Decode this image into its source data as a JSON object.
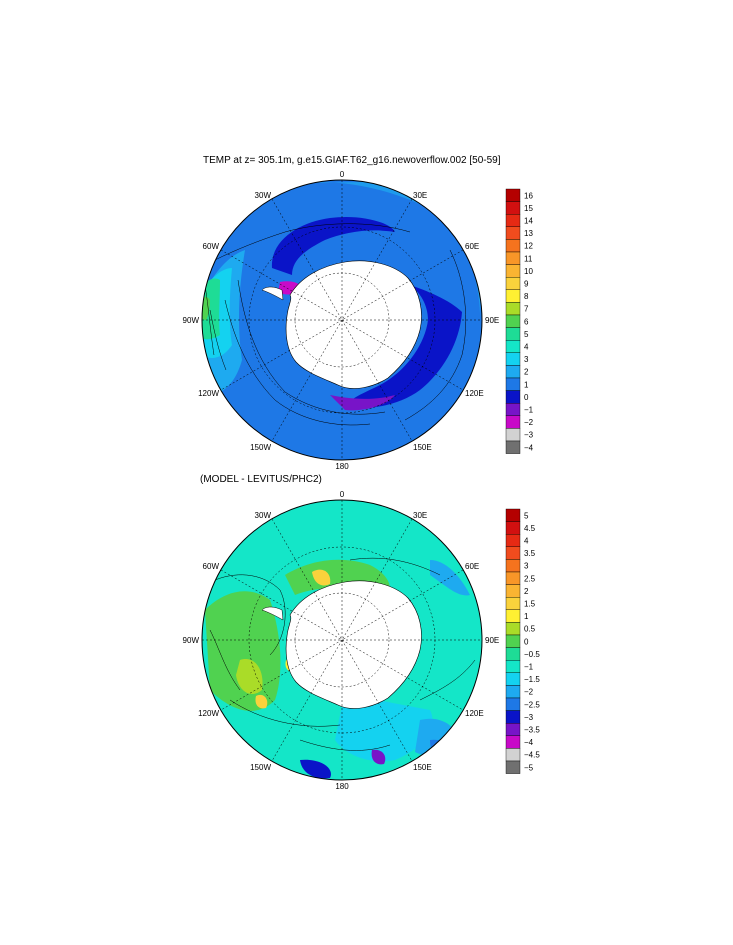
{
  "map1": {
    "title": "TEMP at z= 305.1m, g.e15.GIAF.T62_g16.newoverflow.002 [50-59]",
    "lon_labels": [
      "0",
      "30E",
      "60E",
      "90E",
      "120E",
      "150E",
      "180",
      "150W",
      "120W",
      "90W",
      "60W",
      "30W"
    ],
    "colorbar": {
      "labels": [
        "16",
        "15",
        "14",
        "13",
        "12",
        "11",
        "10",
        "9",
        "8",
        "7",
        "6",
        "5",
        "4",
        "3",
        "2",
        "1",
        "0",
        "−1",
        "−2",
        "−3",
        "−4"
      ],
      "colors": [
        "#b40000",
        "#d21010",
        "#e62a14",
        "#f04c1e",
        "#f5731e",
        "#f89628",
        "#fab432",
        "#fad23c",
        "#fff032",
        "#aadc28",
        "#50d250",
        "#1edc96",
        "#14e6c8",
        "#14d2f0",
        "#1eaaf0",
        "#1e78e6",
        "#0a14c8",
        "#7814c8",
        "#c80ac8",
        "#d2d2d2",
        "#707070"
      ]
    }
  },
  "map2": {
    "title": "(MODEL - LEVITUS/PHC2)",
    "lon_labels": [
      "0",
      "30E",
      "60E",
      "90E",
      "120E",
      "150E",
      "180",
      "150W",
      "120W",
      "90W",
      "60W",
      "30W"
    ],
    "colorbar": {
      "labels": [
        "5",
        "4.5",
        "4",
        "3.5",
        "3",
        "2.5",
        "2",
        "1.5",
        "1",
        "0.5",
        "0",
        "−0.5",
        "−1",
        "−1.5",
        "−2",
        "−2.5",
        "−3",
        "−3.5",
        "−4",
        "−4.5",
        "−5"
      ],
      "colors": [
        "#b40000",
        "#d21010",
        "#e62a14",
        "#f04c1e",
        "#f5731e",
        "#f89628",
        "#fab432",
        "#fad23c",
        "#fff032",
        "#aadc28",
        "#50d250",
        "#1edc96",
        "#14e6c8",
        "#14d2f0",
        "#1eaaf0",
        "#1e78e6",
        "#0a14c8",
        "#7814c8",
        "#c80ac8",
        "#d2d2d2",
        "#707070"
      ]
    }
  }
}
